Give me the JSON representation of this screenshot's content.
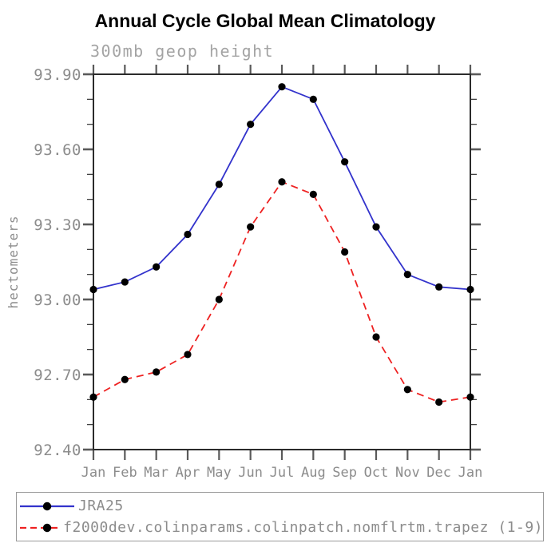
{
  "title": "Annual Cycle Global Mean Climatology",
  "subtitle": "300mb geop height",
  "chart_data": {
    "type": "line",
    "title": "Annual Cycle Global Mean Climatology",
    "subtitle": "300mb geop height",
    "xlabel": "",
    "ylabel": "hectometers",
    "categories": [
      "Jan",
      "Feb",
      "Mar",
      "Apr",
      "May",
      "Jun",
      "Jul",
      "Aug",
      "Sep",
      "Oct",
      "Nov",
      "Dec",
      "Jan"
    ],
    "series": [
      {
        "name": "JRA25",
        "color": "#3333cc",
        "style": "solid",
        "marker": "filled-circle",
        "marker_color": "#000000",
        "values": [
          93.04,
          93.07,
          93.13,
          93.26,
          93.46,
          93.7,
          93.85,
          93.8,
          93.55,
          93.29,
          93.1,
          93.05,
          93.04
        ]
      },
      {
        "name": "f2000dev.colinparams.colinpatch.nomflrtm.trapez (1-9)",
        "color": "#ee2222",
        "style": "dashed",
        "marker": "filled-circle",
        "marker_color": "#000000",
        "values": [
          92.61,
          92.68,
          92.71,
          92.78,
          93.0,
          93.29,
          93.47,
          93.42,
          93.19,
          92.85,
          92.64,
          92.59,
          92.61
        ]
      }
    ],
    "ylim": [
      92.4,
      93.9
    ],
    "yticks_major": [
      "92.40",
      "92.70",
      "93.00",
      "93.30",
      "93.60",
      "93.90"
    ],
    "ytick_minor_step": 0.1,
    "grid": false,
    "legend_position": "bottom-left-box"
  }
}
